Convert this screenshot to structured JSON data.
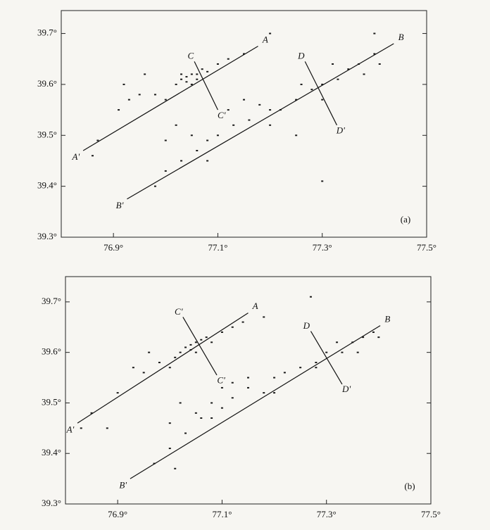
{
  "chart_data": [
    {
      "type": "scatter",
      "label": "(a)",
      "xlim": [
        76.8,
        77.5
      ],
      "ylim": [
        39.3,
        39.745
      ],
      "xticks": [
        {
          "value": 76.9,
          "label": "76.9°"
        },
        {
          "value": 77.1,
          "label": "77.1°"
        },
        {
          "value": 77.3,
          "label": "77.3°"
        },
        {
          "value": 77.5,
          "label": "77.5°"
        }
      ],
      "yticks": [
        {
          "value": 39.3,
          "label": "39.3°"
        },
        {
          "value": 39.4,
          "label": "39.4°"
        },
        {
          "value": 39.5,
          "label": "39.5°"
        },
        {
          "value": 39.6,
          "label": "39.6°"
        },
        {
          "value": 39.7,
          "label": "39.7°"
        }
      ],
      "color": "#1a1a1a",
      "x": [
        77.03,
        77.04,
        77.05,
        77.04,
        77.06,
        77.07,
        77.02,
        77.08,
        77.1,
        77.05,
        77.03,
        77.06,
        76.95,
        76.93,
        76.98,
        77.0,
        76.92,
        76.96,
        76.91,
        76.87,
        76.86,
        77.12,
        77.15,
        77.2,
        76.98,
        77.0,
        77.03,
        77.06,
        77.1,
        77.08,
        77.13,
        77.16,
        77.2,
        77.18,
        77.22,
        77.25,
        77.28,
        77.3,
        77.33,
        77.35,
        77.37,
        77.4,
        77.38,
        77.41,
        77.32,
        77.3,
        77.26,
        77.15,
        77.12,
        77.05,
        77.02,
        77.0,
        77.08,
        77.25,
        77.3,
        77.2,
        77.4
      ],
      "y": [
        39.61,
        39.615,
        39.62,
        39.605,
        39.62,
        39.63,
        39.6,
        39.625,
        39.64,
        39.6,
        39.62,
        39.61,
        39.58,
        39.57,
        39.58,
        39.57,
        39.6,
        39.62,
        39.55,
        39.49,
        39.46,
        39.65,
        39.66,
        39.7,
        39.4,
        39.43,
        39.45,
        39.47,
        39.5,
        39.49,
        39.52,
        39.53,
        39.55,
        39.56,
        39.55,
        39.57,
        39.59,
        39.6,
        39.61,
        39.63,
        39.64,
        39.66,
        39.62,
        39.64,
        39.64,
        39.57,
        39.6,
        39.57,
        39.55,
        39.5,
        39.52,
        39.49,
        39.45,
        39.5,
        39.41,
        39.52,
        39.7
      ],
      "lines": [
        {
          "x": [
            76.842,
            77.177
          ],
          "y": [
            39.47,
            39.675
          ],
          "start_label": "A'",
          "end_label": "A"
        },
        {
          "x": [
            76.926,
            77.437
          ],
          "y": [
            39.375,
            39.68
          ],
          "start_label": "B'",
          "end_label": "B"
        },
        {
          "x": [
            77.055,
            77.1
          ],
          "y": [
            39.645,
            39.55
          ],
          "start_label": "C",
          "end_label": "C'"
        },
        {
          "x": [
            77.267,
            77.328
          ],
          "y": [
            39.645,
            39.52
          ],
          "start_label": "D",
          "end_label": "D'"
        }
      ]
    },
    {
      "type": "scatter",
      "label": "(b)",
      "xlim": [
        76.8,
        77.5
      ],
      "ylim": [
        39.3,
        39.75
      ],
      "xticks": [
        {
          "value": 76.9,
          "label": "76.9°"
        },
        {
          "value": 77.1,
          "label": "77.1°"
        },
        {
          "value": 77.3,
          "label": "77.3°"
        },
        {
          "value": 77.5,
          "label": "77.5°"
        }
      ],
      "yticks": [
        {
          "value": 39.3,
          "label": "39.3°"
        },
        {
          "value": 39.4,
          "label": "39.4°"
        },
        {
          "value": 39.5,
          "label": "39.5°"
        },
        {
          "value": 39.6,
          "label": "39.6°"
        },
        {
          "value": 39.7,
          "label": "39.7°"
        }
      ],
      "color": "#1a1a1a",
      "x": [
        77.03,
        77.04,
        77.05,
        77.04,
        77.06,
        77.07,
        77.02,
        77.08,
        77.1,
        77.05,
        77.01,
        76.98,
        76.96,
        76.93,
        76.95,
        77.0,
        76.9,
        76.85,
        76.83,
        76.88,
        77.12,
        77.14,
        77.18,
        76.97,
        77.0,
        77.03,
        77.06,
        77.1,
        77.08,
        77.12,
        77.15,
        77.18,
        77.2,
        77.22,
        77.25,
        77.28,
        77.3,
        77.33,
        77.35,
        77.37,
        77.39,
        77.36,
        77.32,
        77.28,
        77.15,
        77.12,
        77.05,
        77.02,
        77.0,
        77.08,
        77.1,
        77.2,
        77.27,
        77.4,
        77.01
      ],
      "y": [
        39.61,
        39.615,
        39.62,
        39.605,
        39.625,
        39.63,
        39.6,
        39.62,
        39.64,
        39.6,
        39.59,
        39.58,
        39.6,
        39.57,
        39.56,
        39.57,
        39.52,
        39.48,
        39.45,
        39.45,
        39.65,
        39.66,
        39.67,
        39.38,
        39.41,
        39.44,
        39.47,
        39.49,
        39.5,
        39.51,
        39.53,
        39.52,
        39.55,
        39.56,
        39.57,
        39.58,
        39.6,
        39.6,
        39.62,
        39.63,
        39.64,
        39.6,
        39.62,
        39.57,
        39.55,
        39.54,
        39.48,
        39.5,
        39.46,
        39.47,
        39.53,
        39.52,
        39.71,
        39.63,
        39.37
      ],
      "lines": [
        {
          "x": [
            76.823,
            77.15
          ],
          "y": [
            39.46,
            39.678
          ],
          "start_label": "A'",
          "end_label": "A"
        },
        {
          "x": [
            76.924,
            77.403
          ],
          "y": [
            39.35,
            39.653
          ],
          "start_label": "B'",
          "end_label": "B"
        },
        {
          "x": [
            77.025,
            77.09
          ],
          "y": [
            39.67,
            39.555
          ],
          "start_label": "C'",
          "end_label": "C'"
        },
        {
          "x": [
            77.27,
            77.33
          ],
          "y": [
            39.642,
            39.537
          ],
          "start_label": "D",
          "end_label": "D'"
        }
      ]
    }
  ]
}
